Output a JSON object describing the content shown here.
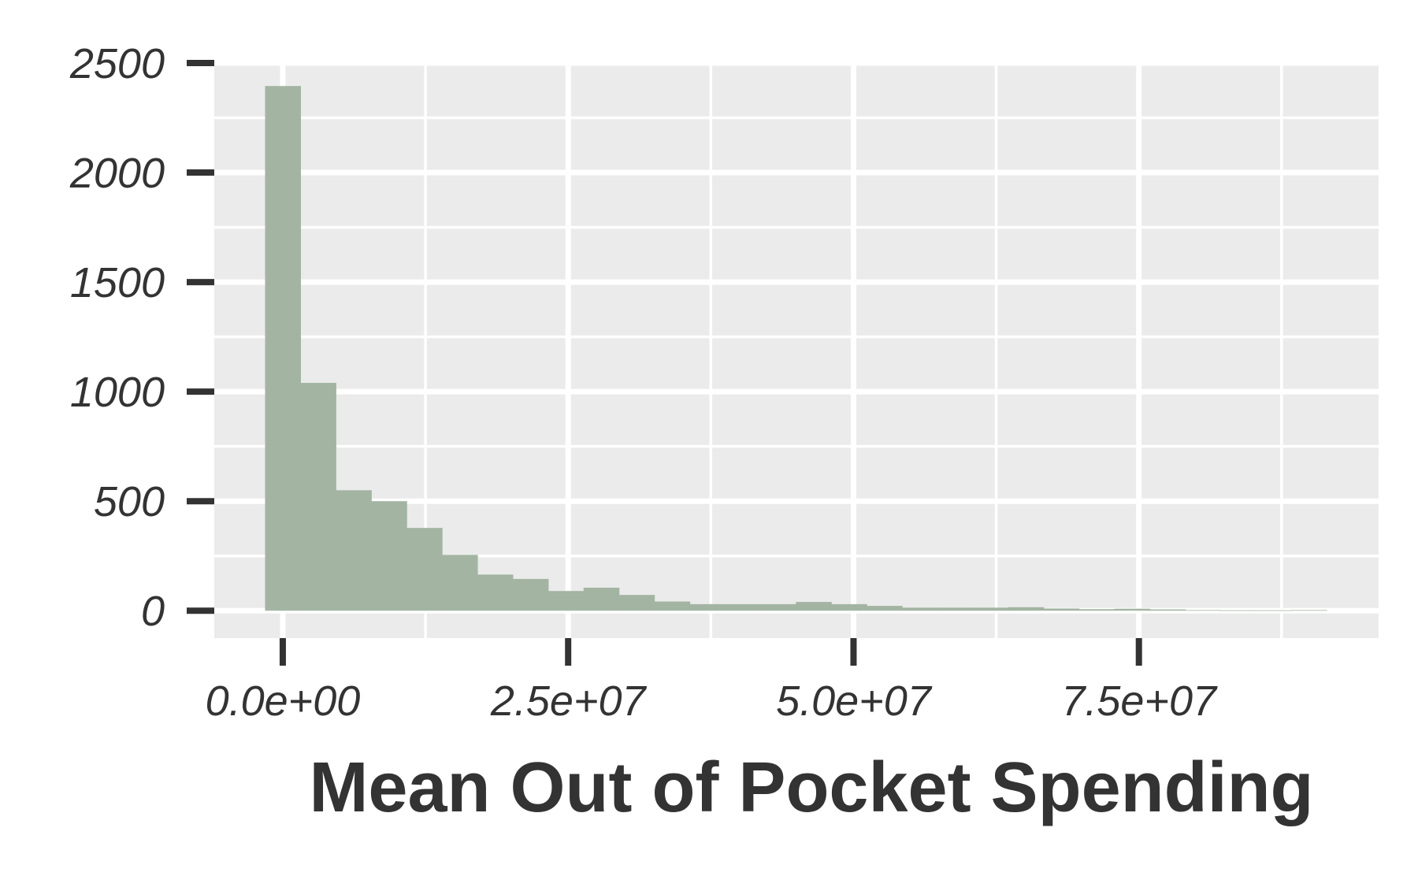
{
  "chart_data": {
    "type": "bar",
    "subtype": "histogram",
    "title": "",
    "xlabel": "Mean Out of Pocket Spending",
    "ylabel": "",
    "bar_color": "#A3B5A2",
    "panel_color": "#EBEBEB",
    "grid": true,
    "legend": "none",
    "xlim": [
      -6000000,
      96000000
    ],
    "ylim": [
      -125,
      2500
    ],
    "x_ticks": [
      0,
      25000000,
      50000000,
      75000000
    ],
    "x_tick_labels": [
      "0.0e+00",
      "2.5e+07",
      "5.0e+07",
      "7.5e+07"
    ],
    "y_ticks": [
      0,
      500,
      1000,
      1500,
      2000,
      2500
    ],
    "y_tick_labels": [
      "0",
      "500",
      "1000",
      "1500",
      "2000",
      "2500"
    ],
    "bin_width": 3100000,
    "bins": [
      {
        "x0": -1550000,
        "x1": 1550000,
        "count": 2395
      },
      {
        "x0": 1550000,
        "x1": 4650000,
        "count": 1040
      },
      {
        "x0": 4650000,
        "x1": 7750000,
        "count": 550
      },
      {
        "x0": 7750000,
        "x1": 10850000,
        "count": 500
      },
      {
        "x0": 10850000,
        "x1": 13950000,
        "count": 378
      },
      {
        "x0": 13950000,
        "x1": 17050000,
        "count": 255
      },
      {
        "x0": 17050000,
        "x1": 20150000,
        "count": 165
      },
      {
        "x0": 20150000,
        "x1": 23250000,
        "count": 145
      },
      {
        "x0": 23250000,
        "x1": 26350000,
        "count": 90
      },
      {
        "x0": 26350000,
        "x1": 29450000,
        "count": 105
      },
      {
        "x0": 29450000,
        "x1": 32550000,
        "count": 72
      },
      {
        "x0": 32550000,
        "x1": 35650000,
        "count": 42
      },
      {
        "x0": 35650000,
        "x1": 38750000,
        "count": 30
      },
      {
        "x0": 38750000,
        "x1": 41850000,
        "count": 30
      },
      {
        "x0": 41850000,
        "x1": 44950000,
        "count": 30
      },
      {
        "x0": 44950000,
        "x1": 48050000,
        "count": 40
      },
      {
        "x0": 48050000,
        "x1": 51150000,
        "count": 30
      },
      {
        "x0": 51150000,
        "x1": 54250000,
        "count": 22
      },
      {
        "x0": 54250000,
        "x1": 57350000,
        "count": 14
      },
      {
        "x0": 57350000,
        "x1": 60450000,
        "count": 14
      },
      {
        "x0": 60450000,
        "x1": 63550000,
        "count": 14
      },
      {
        "x0": 63550000,
        "x1": 66650000,
        "count": 16
      },
      {
        "x0": 66650000,
        "x1": 69750000,
        "count": 10
      },
      {
        "x0": 69750000,
        "x1": 72850000,
        "count": 7
      },
      {
        "x0": 72850000,
        "x1": 75950000,
        "count": 9
      },
      {
        "x0": 75950000,
        "x1": 79050000,
        "count": 6
      },
      {
        "x0": 79050000,
        "x1": 82150000,
        "count": 3
      },
      {
        "x0": 82150000,
        "x1": 85250000,
        "count": 2
      },
      {
        "x0": 85250000,
        "x1": 88350000,
        "count": 2
      },
      {
        "x0": 88350000,
        "x1": 91450000,
        "count": 3
      }
    ]
  }
}
